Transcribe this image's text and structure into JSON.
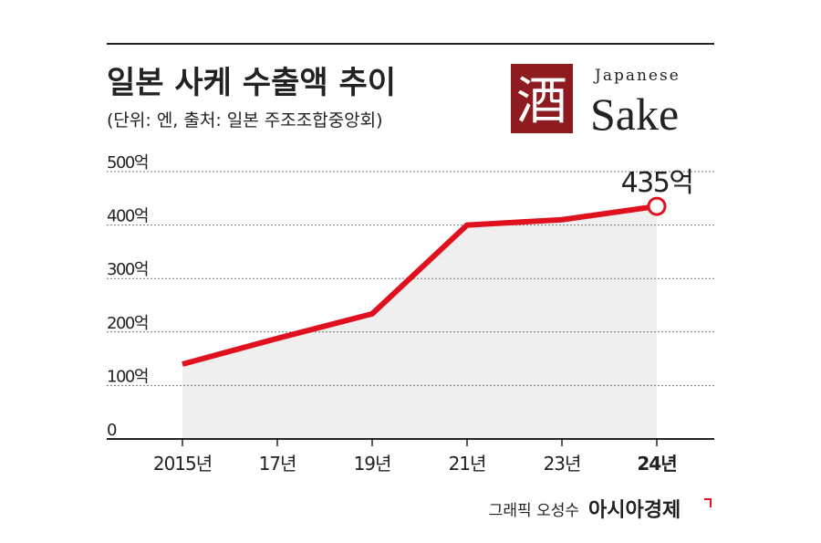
{
  "chart_data": {
    "type": "line",
    "title": "일본 사케 수출액 추이",
    "subtitle": "(단위: 엔, 출처: 일본 주조조합중앙회)",
    "categories": [
      "2015년",
      "17년",
      "19년",
      "21년",
      "23년",
      "24년"
    ],
    "values": [
      140,
      188,
      234,
      400,
      410,
      435
    ],
    "value_labels": [
      null,
      null,
      null,
      null,
      null,
      "435억"
    ],
    "color": "#e0101e",
    "area_color": "#efefef",
    "ylim": [
      0,
      500
    ],
    "yticks": [
      0,
      {
        "value": 100,
        "label": "100억"
      },
      {
        "value": 200,
        "label": "200억"
      },
      {
        "value": 300,
        "label": "300억"
      },
      {
        "value": 400,
        "label": "400억"
      },
      {
        "value": 500,
        "label": "500억"
      }
    ],
    "grid": true
  },
  "logo": {
    "kanji": "酒",
    "small": "Japanese",
    "large": "Sake"
  },
  "credit": {
    "graphic": "그래픽 오성수",
    "brand": "아시아경제"
  }
}
